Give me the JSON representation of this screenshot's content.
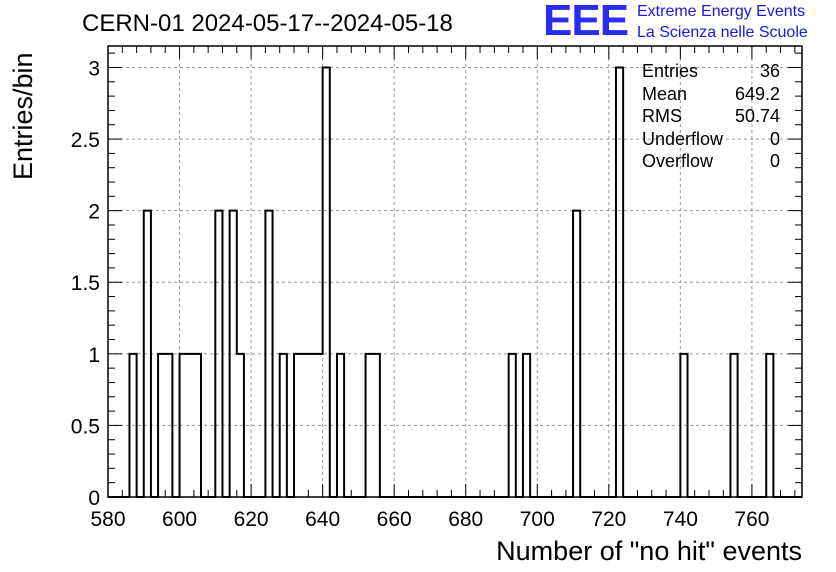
{
  "title": "CERN-01 2024-05-17--2024-05-18",
  "logo": {
    "mark": "EEE",
    "line1": "Extreme Energy Events",
    "line2": "La Scienza nelle Scuole",
    "color": "#2a2cf0"
  },
  "stats": [
    {
      "label": "Entries",
      "value": "36"
    },
    {
      "label": "Mean",
      "value": "649.2"
    },
    {
      "label": "RMS",
      "value": "50.74"
    },
    {
      "label": "Underflow",
      "value": "0"
    },
    {
      "label": "Overflow",
      "value": "0"
    }
  ],
  "chart_data": {
    "type": "bar",
    "style": "step-histogram",
    "xlabel": "Number of \"no hit\" events",
    "ylabel": "Entries/bin",
    "xlim": [
      580,
      774
    ],
    "ylim": [
      0,
      3.15
    ],
    "xticks": [
      580,
      600,
      620,
      640,
      660,
      680,
      700,
      720,
      740,
      760
    ],
    "yticks": [
      0,
      0.5,
      1,
      1.5,
      2,
      2.5,
      3
    ],
    "grid": true,
    "bin_width": 2,
    "bins": [
      {
        "x": 586,
        "count": 1
      },
      {
        "x": 590,
        "count": 2
      },
      {
        "x": 594,
        "count": 1
      },
      {
        "x": 596,
        "count": 1
      },
      {
        "x": 600,
        "count": 1
      },
      {
        "x": 602,
        "count": 1
      },
      {
        "x": 604,
        "count": 1
      },
      {
        "x": 610,
        "count": 2
      },
      {
        "x": 614,
        "count": 2
      },
      {
        "x": 616,
        "count": 1
      },
      {
        "x": 624,
        "count": 2
      },
      {
        "x": 628,
        "count": 1
      },
      {
        "x": 632,
        "count": 1
      },
      {
        "x": 634,
        "count": 1
      },
      {
        "x": 636,
        "count": 1
      },
      {
        "x": 638,
        "count": 1
      },
      {
        "x": 640,
        "count": 3
      },
      {
        "x": 644,
        "count": 1
      },
      {
        "x": 652,
        "count": 1
      },
      {
        "x": 654,
        "count": 1
      },
      {
        "x": 692,
        "count": 1
      },
      {
        "x": 696,
        "count": 1
      },
      {
        "x": 710,
        "count": 2
      },
      {
        "x": 722,
        "count": 3
      },
      {
        "x": 740,
        "count": 1
      },
      {
        "x": 754,
        "count": 1
      },
      {
        "x": 764,
        "count": 1
      }
    ]
  }
}
